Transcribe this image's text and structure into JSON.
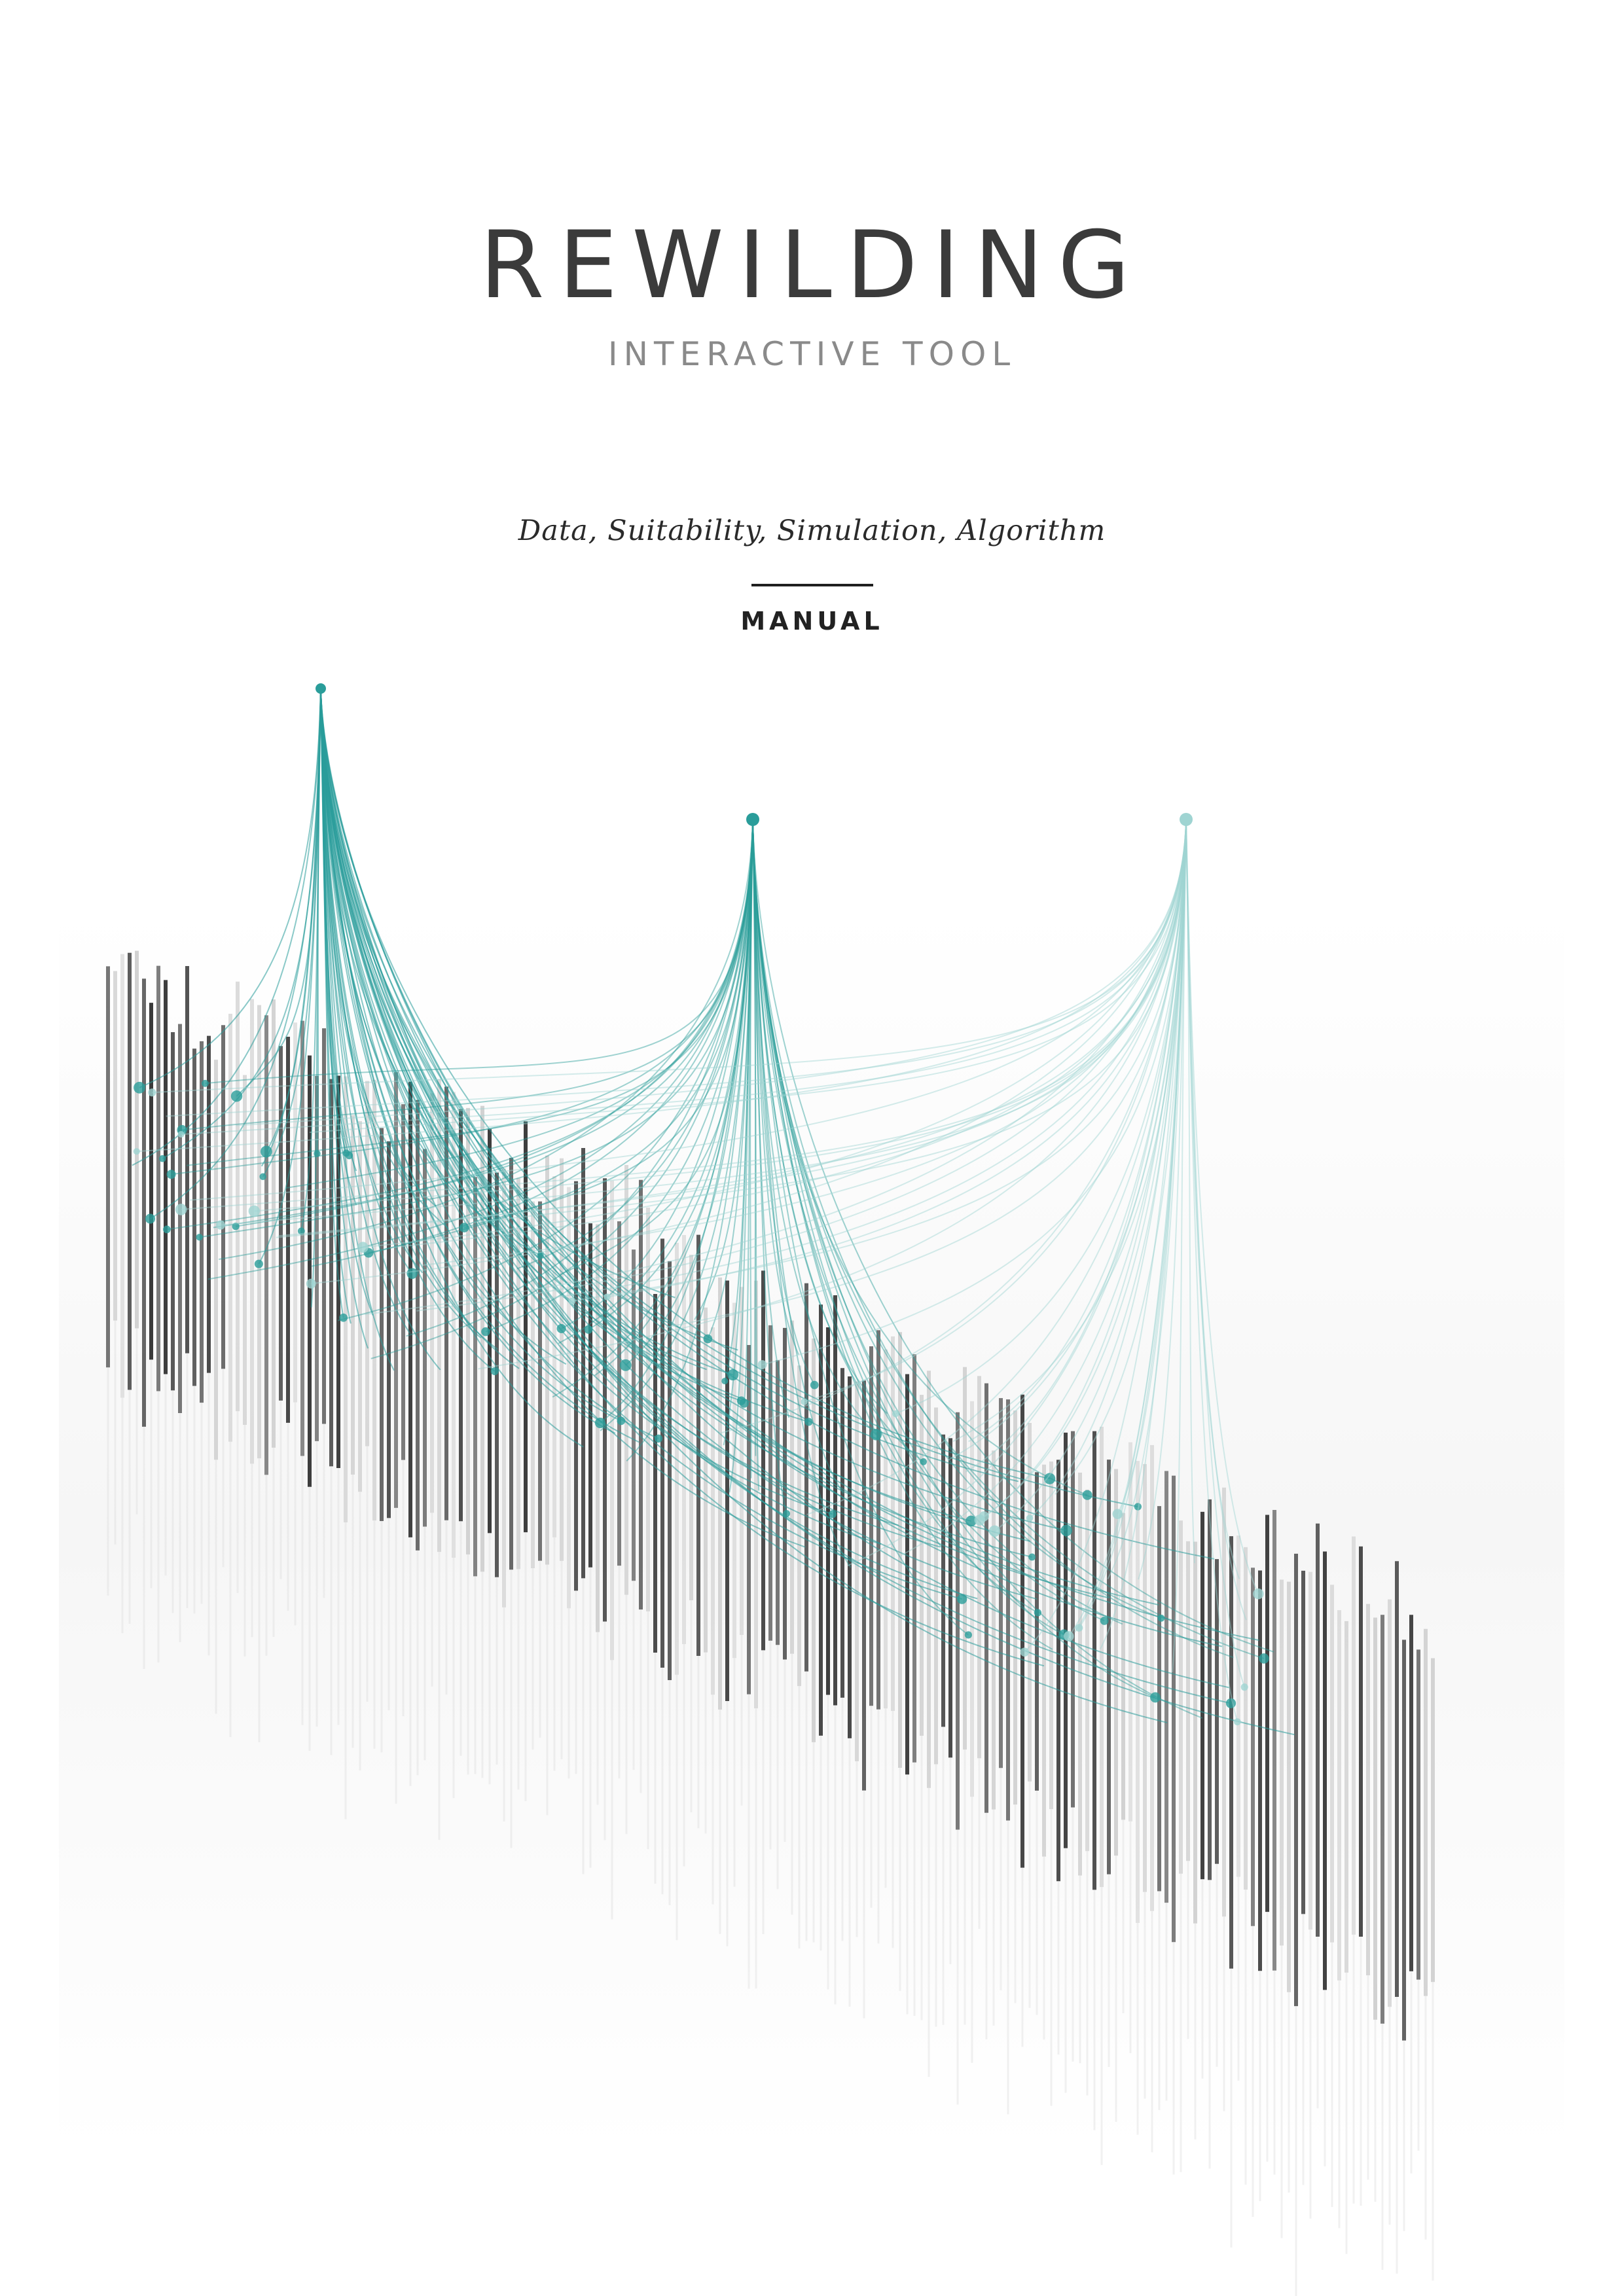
{
  "cover": {
    "title": "REWILDING",
    "subtitle": "INTERACTIVE TOOL",
    "tagline": "Data, Suitability, Simulation, Algorithm",
    "doc_type": "MANUAL"
  },
  "illustration": {
    "accent_color": "#2a9d9a",
    "accent_light": "#9fd4d2",
    "terrain_dark": "#2e2e2e",
    "terrain_light": "#cfcfcf"
  }
}
